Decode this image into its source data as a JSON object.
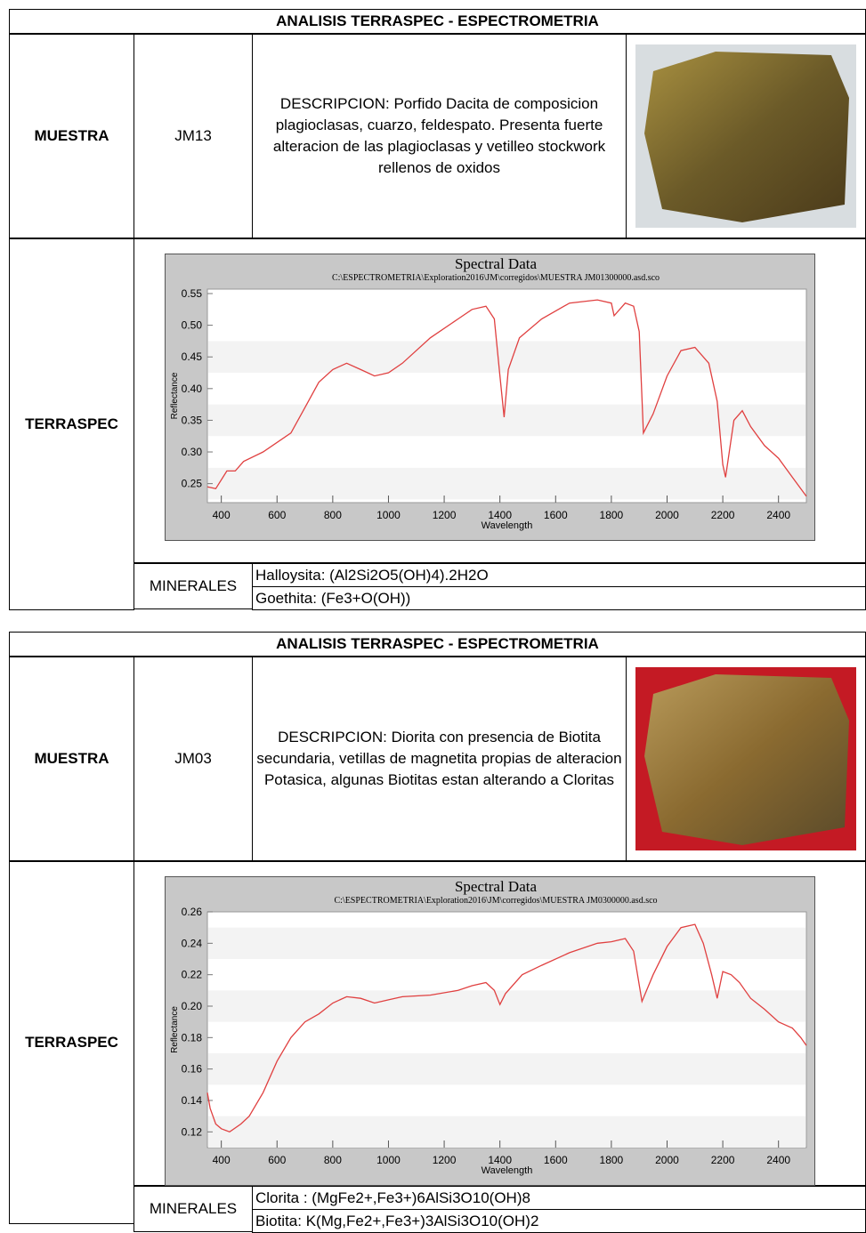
{
  "sheets": [
    {
      "title": "ANALISIS TERRASPEC - ESPECTROMETRIA",
      "muestra_label": "MUESTRA",
      "sample": "JM13",
      "description": "DESCRIPCION: Porfido Dacita de composicion plagioclasas, cuarzo, feldespato. Presenta fuerte alteracion de las plagioclasas y vetilleo stockwork rellenos de oxidos",
      "terraspec_label": "TERRASPEC",
      "chart": {
        "type": "line",
        "title": "Spectral Data",
        "subtitle": "C:\\ESPECTROMETRIA\\Exploration2016\\JM\\corregidos\\MUESTRA JM01300000.asd.sco",
        "x_label": "Wavelength",
        "y_label": "Reflectance",
        "color": "#e04040",
        "grid": true,
        "xlim": [
          350,
          2500
        ],
        "ylim": [
          0.22,
          0.557
        ],
        "xticks": [
          400,
          600,
          800,
          1000,
          1200,
          1400,
          1600,
          1800,
          2000,
          2200,
          2400
        ],
        "yticks": [
          0.25,
          {
            "value": 0.3,
            "label": "0.30"
          },
          0.35,
          {
            "value": 0.4,
            "label": "0.40"
          },
          0.45,
          {
            "value": 0.5,
            "label": "0.50"
          },
          0.55
        ],
        "x": [
          350,
          380,
          420,
          450,
          480,
          550,
          650,
          700,
          750,
          800,
          850,
          900,
          950,
          1000,
          1050,
          1150,
          1250,
          1300,
          1350,
          1380,
          1400,
          1415,
          1430,
          1470,
          1550,
          1650,
          1750,
          1800,
          1810,
          1850,
          1880,
          1900,
          1915,
          1950,
          2000,
          2050,
          2100,
          2150,
          2180,
          2200,
          2210,
          2240,
          2270,
          2300,
          2350,
          2400,
          2450,
          2500
        ],
        "values": [
          0.245,
          0.242,
          0.27,
          0.27,
          0.285,
          0.3,
          0.33,
          0.37,
          0.41,
          0.43,
          0.44,
          0.43,
          0.42,
          0.425,
          0.44,
          0.48,
          0.51,
          0.525,
          0.53,
          0.51,
          0.42,
          0.355,
          0.43,
          0.48,
          0.51,
          0.535,
          0.54,
          0.535,
          0.515,
          0.535,
          0.53,
          0.49,
          0.33,
          0.36,
          0.42,
          0.46,
          0.465,
          0.44,
          0.38,
          0.28,
          0.26,
          0.35,
          0.365,
          0.34,
          0.31,
          0.29,
          0.26,
          0.23
        ]
      },
      "minerales_label": "MINERALES",
      "minerales": [
        "Halloysita: (Al2Si2O5(OH)4).2H2O",
        "Goethita: (Fe3+O(OH))"
      ]
    },
    {
      "title": "ANALISIS TERRASPEC - ESPECTROMETRIA",
      "muestra_label": "MUESTRA",
      "sample": "JM03",
      "description": "DESCRIPCION: Diorita con presencia de Biotita secundaria, vetillas de magnetita propias de alteracion Potasica, algunas Biotitas estan alterando a Cloritas",
      "terraspec_label": "TERRASPEC",
      "chart": {
        "type": "line",
        "title": "Spectral Data",
        "subtitle": "C:\\ESPECTROMETRIA\\Exploration2016\\JM\\corregidos\\MUESTRA JM0300000.asd.sco",
        "x_label": "Wavelength",
        "y_label": "Reflectance",
        "color": "#e04040",
        "grid": true,
        "xlim": [
          350,
          2500
        ],
        "ylim": [
          0.11,
          0.26
        ],
        "xticks": [
          400,
          600,
          800,
          1000,
          1200,
          1400,
          1600,
          1800,
          2000,
          2200,
          2400
        ],
        "yticks": [
          0.12,
          0.14,
          0.16,
          0.18,
          {
            "value": 0.2,
            "label": "0.20"
          },
          0.22,
          0.24,
          0.26
        ],
        "x": [
          350,
          360,
          380,
          400,
          430,
          470,
          500,
          550,
          600,
          650,
          700,
          750,
          800,
          850,
          900,
          950,
          1000,
          1050,
          1150,
          1250,
          1300,
          1350,
          1380,
          1400,
          1420,
          1480,
          1550,
          1650,
          1750,
          1800,
          1850,
          1880,
          1910,
          1950,
          2000,
          2050,
          2100,
          2130,
          2160,
          2180,
          2200,
          2230,
          2260,
          2300,
          2350,
          2400,
          2450,
          2480,
          2500
        ],
        "values": [
          0.145,
          0.135,
          0.125,
          0.122,
          0.12,
          0.125,
          0.13,
          0.145,
          0.165,
          0.18,
          0.19,
          0.195,
          0.202,
          0.206,
          0.205,
          0.202,
          0.204,
          0.206,
          0.207,
          0.21,
          0.213,
          0.215,
          0.21,
          0.201,
          0.208,
          0.22,
          0.226,
          0.234,
          0.24,
          0.241,
          0.243,
          0.235,
          0.203,
          0.22,
          0.238,
          0.25,
          0.252,
          0.24,
          0.22,
          0.205,
          0.222,
          0.22,
          0.215,
          0.205,
          0.198,
          0.19,
          0.186,
          0.18,
          0.175
        ]
      },
      "minerales_label": "MINERALES",
      "minerales": [
        "Clorita : (MgFe2+,Fe3+)6AlSi3O10(OH)8",
        "Biotita: K(Mg,Fe2+,Fe3+)3AlSi3O10(OH)2"
      ]
    }
  ]
}
